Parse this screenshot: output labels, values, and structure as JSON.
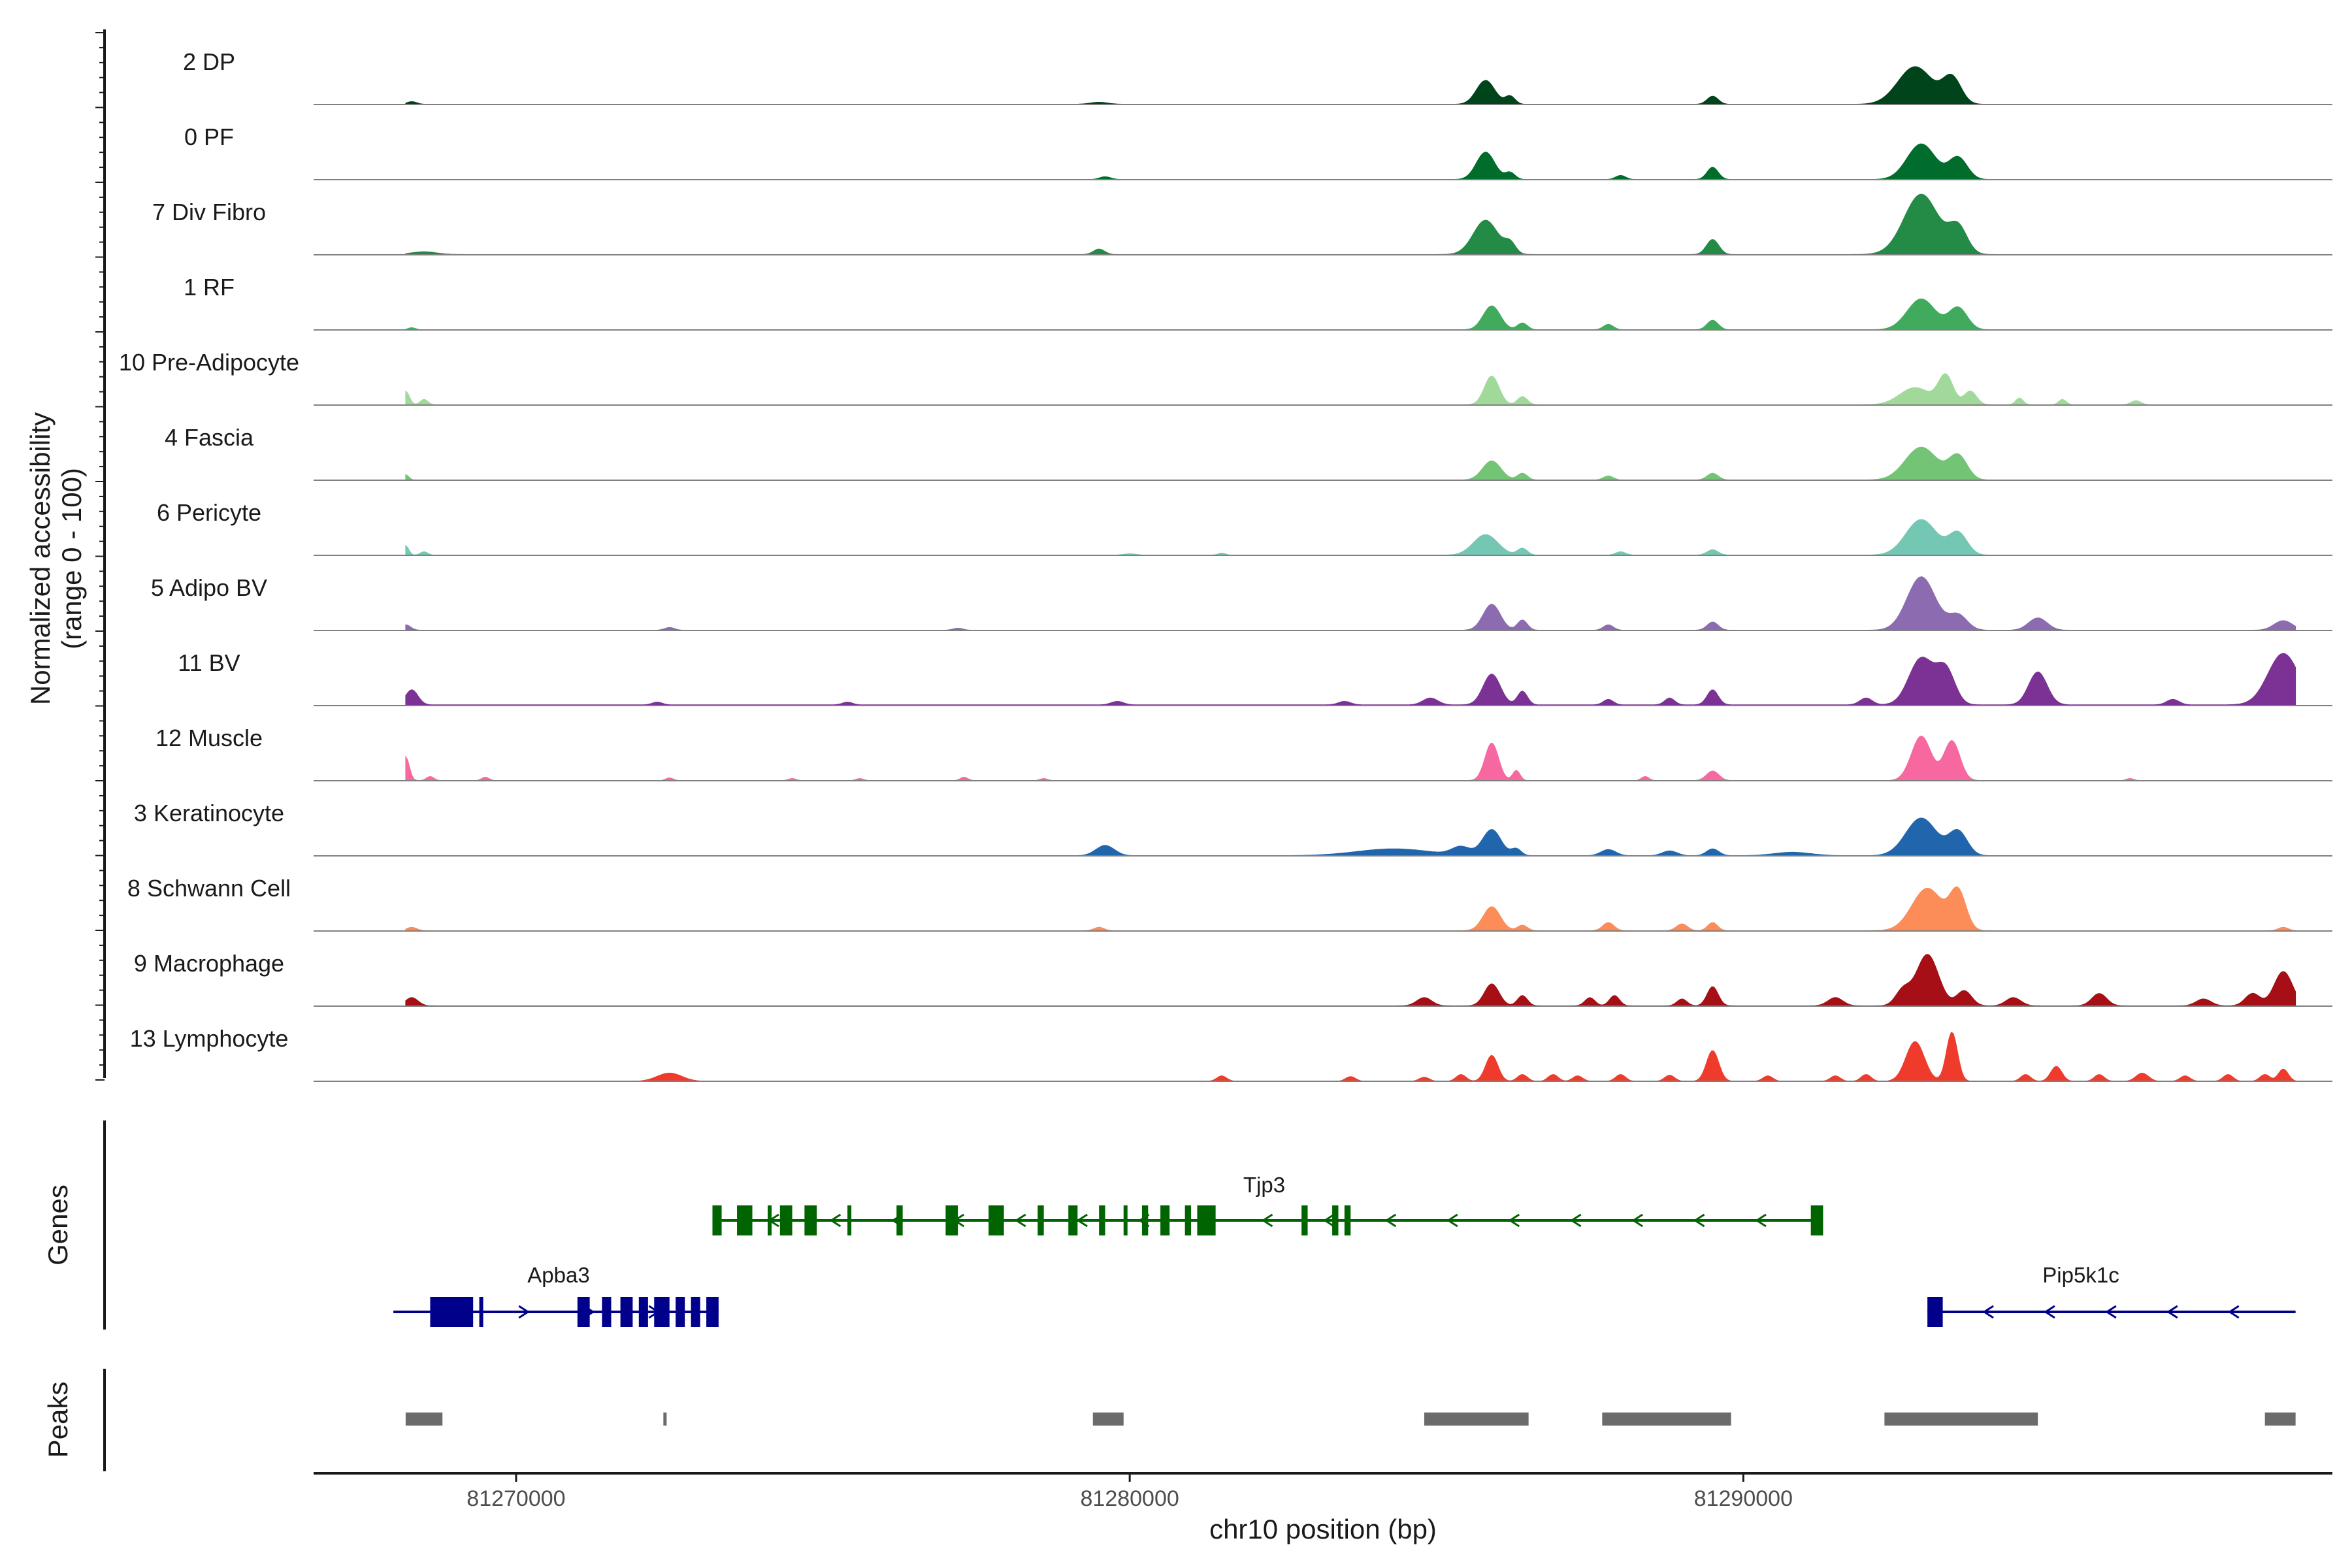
{
  "chart_data": {
    "type": "area",
    "title": "",
    "chromosome": "chr10",
    "xlabel": "chr10 position (bp)",
    "ylabel_line1": "Normalized accessibility",
    "ylabel_line2": "(range 0 - 100)",
    "xlim": [
      81266700,
      81299600
    ],
    "ylim": [
      0,
      100
    ],
    "x_ticks": [
      81270000,
      81280000,
      81290000
    ],
    "x_tick_labels": [
      "81270000",
      "81280000",
      "81290000"
    ],
    "genes_panel_label": "Genes",
    "peaks_panel_label": "Peaks",
    "tracks": [
      {
        "name": "2 DP",
        "color": "#00441b",
        "baseline": 0.3,
        "baseline_range": [
          81268200,
          81299000
        ],
        "peaks": [
          [
            81268300,
            4,
            80
          ],
          [
            81279500,
            3,
            150
          ],
          [
            81285800,
            35,
            150
          ],
          [
            81286200,
            12,
            80
          ],
          [
            81289500,
            12,
            90
          ],
          [
            81292800,
            55,
            280
          ],
          [
            81293400,
            38,
            150
          ]
        ]
      },
      {
        "name": "0 PF",
        "color": "#006d2c",
        "baseline": 0.3,
        "baseline_range": [
          81268200,
          81299000
        ],
        "peaks": [
          [
            81279600,
            4,
            90
          ],
          [
            81285800,
            40,
            150
          ],
          [
            81286200,
            10,
            80
          ],
          [
            81288000,
            6,
            80
          ],
          [
            81289500,
            18,
            90
          ],
          [
            81292900,
            52,
            230
          ],
          [
            81293500,
            32,
            150
          ]
        ]
      },
      {
        "name": "7 Div Fibro",
        "color": "#238b45",
        "baseline": 0.5,
        "baseline_range": [
          81268200,
          81299000
        ],
        "peaks": [
          [
            81268500,
            4,
            200
          ],
          [
            81279500,
            8,
            90
          ],
          [
            81285800,
            50,
            200
          ],
          [
            81286200,
            15,
            90
          ],
          [
            81289500,
            22,
            100
          ],
          [
            81292900,
            88,
            280
          ],
          [
            81293500,
            38,
            150
          ]
        ]
      },
      {
        "name": "1 RF",
        "color": "#41ab5d",
        "baseline": 0.3,
        "baseline_range": [
          81268200,
          81299000
        ],
        "peaks": [
          [
            81268300,
            3,
            60
          ],
          [
            81285900,
            35,
            140
          ],
          [
            81286400,
            10,
            80
          ],
          [
            81287800,
            8,
            80
          ],
          [
            81289500,
            14,
            90
          ],
          [
            81292900,
            45,
            230
          ],
          [
            81293500,
            32,
            150
          ]
        ]
      },
      {
        "name": "10 Pre-Adipocyte",
        "color": "#a1d99b",
        "baseline": 0.5,
        "baseline_range": [
          81268200,
          81299000
        ],
        "peaks": [
          [
            81268200,
            20,
            60
          ],
          [
            81268500,
            8,
            60
          ],
          [
            81285900,
            42,
            120
          ],
          [
            81286400,
            12,
            80
          ],
          [
            81292800,
            25,
            250
          ],
          [
            81293300,
            42,
            120
          ],
          [
            81293700,
            20,
            100
          ],
          [
            81294500,
            10,
            60
          ],
          [
            81295200,
            8,
            60
          ],
          [
            81296400,
            6,
            80
          ]
        ]
      },
      {
        "name": "4 Fascia",
        "color": "#74c476",
        "baseline": 0.3,
        "baseline_range": [
          81268200,
          81299000
        ],
        "peaks": [
          [
            81268200,
            8,
            50
          ],
          [
            81285900,
            28,
            150
          ],
          [
            81286400,
            10,
            80
          ],
          [
            81287800,
            6,
            80
          ],
          [
            81289500,
            10,
            90
          ],
          [
            81292900,
            48,
            260
          ],
          [
            81293500,
            35,
            150
          ]
        ]
      },
      {
        "name": "6 Pericyte",
        "color": "#74c8b3",
        "baseline": 0.3,
        "baseline_range": [
          81268200,
          81299000
        ],
        "peaks": [
          [
            81268200,
            14,
            50
          ],
          [
            81268500,
            5,
            60
          ],
          [
            81280000,
            2,
            100
          ],
          [
            81281500,
            3,
            60
          ],
          [
            81285800,
            30,
            200
          ],
          [
            81286400,
            10,
            80
          ],
          [
            81288000,
            5,
            80
          ],
          [
            81289500,
            8,
            90
          ],
          [
            81292900,
            52,
            250
          ],
          [
            81293500,
            32,
            150
          ]
        ]
      },
      {
        "name": "5 Adipo BV",
        "color": "#8c6bb1",
        "baseline": 0.4,
        "baseline_range": [
          81268200,
          81299000
        ],
        "peaks": [
          [
            81268200,
            8,
            80
          ],
          [
            81272500,
            4,
            80
          ],
          [
            81277200,
            3,
            80
          ],
          [
            81285900,
            38,
            140
          ],
          [
            81286400,
            15,
            80
          ],
          [
            81287800,
            8,
            80
          ],
          [
            81289500,
            12,
            90
          ],
          [
            81292900,
            78,
            230
          ],
          [
            81293500,
            22,
            150
          ],
          [
            81294800,
            18,
            150
          ],
          [
            81298800,
            14,
            150
          ]
        ]
      },
      {
        "name": "11 BV",
        "color": "#7b3294",
        "baseline": 1.2,
        "baseline_range": [
          81268200,
          81299000
        ],
        "peaks": [
          [
            81268300,
            22,
            100
          ],
          [
            81272300,
            4,
            80
          ],
          [
            81275400,
            4,
            80
          ],
          [
            81279800,
            5,
            100
          ],
          [
            81283500,
            5,
            100
          ],
          [
            81284900,
            10,
            120
          ],
          [
            81285900,
            45,
            140
          ],
          [
            81286400,
            20,
            80
          ],
          [
            81287800,
            8,
            80
          ],
          [
            81288800,
            10,
            80
          ],
          [
            81289500,
            22,
            90
          ],
          [
            81292000,
            10,
            100
          ],
          [
            81292900,
            68,
            200
          ],
          [
            81293300,
            50,
            150
          ],
          [
            81294800,
            48,
            150
          ],
          [
            81297000,
            8,
            100
          ],
          [
            81298800,
            75,
            250
          ]
        ]
      },
      {
        "name": "12 Muscle",
        "color": "#f768a1",
        "baseline": 0.3,
        "baseline_range": [
          81268200,
          81299000
        ],
        "peaks": [
          [
            81268200,
            35,
            60
          ],
          [
            81268600,
            6,
            60
          ],
          [
            81269500,
            5,
            60
          ],
          [
            81272500,
            4,
            60
          ],
          [
            81274500,
            3,
            60
          ],
          [
            81275600,
            3,
            60
          ],
          [
            81277300,
            5,
            60
          ],
          [
            81278600,
            3,
            60
          ],
          [
            81285900,
            55,
            110
          ],
          [
            81286300,
            15,
            60
          ],
          [
            81288400,
            6,
            60
          ],
          [
            81289500,
            14,
            100
          ],
          [
            81292900,
            65,
            160
          ],
          [
            81293400,
            58,
            130
          ],
          [
            81296300,
            3,
            60
          ]
        ]
      },
      {
        "name": "3 Keratinocyte",
        "color": "#2166ac",
        "baseline": 0.3,
        "baseline_range": [
          81268200,
          81299000
        ],
        "peaks": [
          [
            81279600,
            15,
            150
          ],
          [
            81284300,
            10,
            600
          ],
          [
            81285400,
            12,
            150
          ],
          [
            81285900,
            38,
            150
          ],
          [
            81286300,
            10,
            80
          ],
          [
            81287800,
            9,
            120
          ],
          [
            81288800,
            7,
            120
          ],
          [
            81289500,
            10,
            100
          ],
          [
            81290800,
            5,
            300
          ],
          [
            81292900,
            55,
            250
          ],
          [
            81293500,
            35,
            150
          ]
        ]
      },
      {
        "name": "8 Schwann Cell",
        "color": "#fc8d59",
        "baseline": 0.5,
        "baseline_range": [
          81268200,
          81299000
        ],
        "peaks": [
          [
            81268300,
            5,
            80
          ],
          [
            81279500,
            5,
            80
          ],
          [
            81285900,
            35,
            140
          ],
          [
            81286400,
            8,
            80
          ],
          [
            81287800,
            12,
            90
          ],
          [
            81289000,
            10,
            90
          ],
          [
            81289500,
            12,
            80
          ],
          [
            81293000,
            62,
            250
          ],
          [
            81293500,
            55,
            130
          ],
          [
            81298800,
            5,
            80
          ]
        ]
      },
      {
        "name": "9 Macrophage",
        "color": "#a50f15",
        "baseline": 0.6,
        "baseline_range": [
          81268200,
          81299000
        ],
        "peaks": [
          [
            81268300,
            12,
            100
          ],
          [
            81284800,
            12,
            120
          ],
          [
            81285900,
            32,
            120
          ],
          [
            81286400,
            15,
            80
          ],
          [
            81287500,
            12,
            80
          ],
          [
            81287900,
            15,
            80
          ],
          [
            81289000,
            10,
            80
          ],
          [
            81289500,
            28,
            90
          ],
          [
            81291500,
            12,
            120
          ],
          [
            81292600,
            22,
            120
          ],
          [
            81293000,
            75,
            180
          ],
          [
            81293600,
            22,
            120
          ],
          [
            81294400,
            12,
            120
          ],
          [
            81295800,
            18,
            120
          ],
          [
            81297500,
            10,
            120
          ],
          [
            81298300,
            18,
            120
          ],
          [
            81298800,
            50,
            150
          ]
        ]
      },
      {
        "name": "13 Lymphocyte",
        "color": "#ef3b2c",
        "baseline": 0.0,
        "baseline_range": [
          81268200,
          81299000
        ],
        "peaks": [
          [
            81272500,
            12,
            200
          ],
          [
            81281500,
            8,
            80
          ],
          [
            81283600,
            7,
            80
          ],
          [
            81284800,
            6,
            80
          ],
          [
            81285400,
            10,
            80
          ],
          [
            81285900,
            38,
            100
          ],
          [
            81286400,
            10,
            80
          ],
          [
            81286900,
            10,
            80
          ],
          [
            81287300,
            8,
            80
          ],
          [
            81288000,
            10,
            80
          ],
          [
            81288800,
            9,
            80
          ],
          [
            81289500,
            45,
            100
          ],
          [
            81290400,
            8,
            80
          ],
          [
            81291500,
            8,
            80
          ],
          [
            81292000,
            10,
            80
          ],
          [
            81292800,
            58,
            150
          ],
          [
            81293400,
            72,
            90
          ],
          [
            81294600,
            10,
            80
          ],
          [
            81295100,
            22,
            90
          ],
          [
            81295800,
            10,
            80
          ],
          [
            81296500,
            12,
            100
          ],
          [
            81297200,
            8,
            80
          ],
          [
            81297900,
            10,
            80
          ],
          [
            81298500,
            10,
            80
          ],
          [
            81298800,
            18,
            80
          ]
        ]
      }
    ],
    "genes": [
      {
        "name": "Tjp3",
        "strand": "-",
        "color": "#006400",
        "start": 81273200,
        "end": 81291300,
        "exons": [
          [
            81273200,
            81273350
          ],
          [
            81273600,
            81273850
          ],
          [
            81274100,
            81274150
          ],
          [
            81274300,
            81274500
          ],
          [
            81274700,
            81274900
          ],
          [
            81275400,
            81275450
          ],
          [
            81276200,
            81276300
          ],
          [
            81277000,
            81277200
          ],
          [
            81277700,
            81277950
          ],
          [
            81278500,
            81278600
          ],
          [
            81279000,
            81279150
          ],
          [
            81279500,
            81279600
          ],
          [
            81279900,
            81279950
          ],
          [
            81280200,
            81280300
          ],
          [
            81280500,
            81280650
          ],
          [
            81280900,
            81281000
          ],
          [
            81281100,
            81281400
          ],
          [
            81282800,
            81282900
          ],
          [
            81283300,
            81283400
          ],
          [
            81283500,
            81283600
          ],
          [
            81291100,
            81291300
          ]
        ]
      },
      {
        "name": "Apba3",
        "strand": "+",
        "color": "#00008b",
        "start": 81268000,
        "end": 81273300,
        "exons": [
          [
            81268600,
            81269300
          ],
          [
            81269400,
            81269450
          ],
          [
            81271000,
            81271200
          ],
          [
            81271400,
            81271550
          ],
          [
            81271700,
            81271900
          ],
          [
            81272000,
            81272150
          ],
          [
            81272250,
            81272500
          ],
          [
            81272600,
            81272750
          ],
          [
            81272850,
            81273000
          ],
          [
            81273100,
            81273300
          ]
        ]
      },
      {
        "name": "Pip5k1c",
        "strand": "-",
        "color": "#00008b",
        "start": 81293000,
        "end": 81299000,
        "exons": [
          [
            81293000,
            81293250
          ]
        ]
      }
    ],
    "peak_regions": [
      [
        81268200,
        81268800
      ],
      [
        81272400,
        81272450
      ],
      [
        81279400,
        81279900
      ],
      [
        81284800,
        81286500
      ],
      [
        81287700,
        81289800
      ],
      [
        81292300,
        81294800
      ],
      [
        81298500,
        81299000
      ]
    ]
  }
}
